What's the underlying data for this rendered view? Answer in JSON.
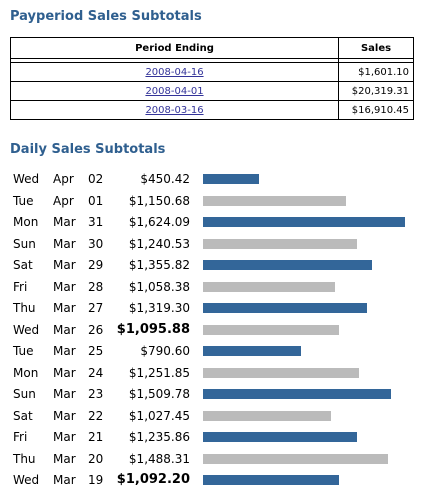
{
  "payperiod": {
    "title": "Payperiod Sales Subtotals",
    "columns": [
      "Period Ending",
      "Sales"
    ],
    "rows": [
      [
        "2008-04-16",
        "$1,601.10"
      ],
      [
        "2008-04-01",
        "$20,319.31"
      ],
      [
        "2008-03-16",
        "$16,910.45"
      ]
    ]
  },
  "daily": {
    "title": "Daily Sales Subtotals",
    "colors": [
      "#336699",
      "#bbbbbb"
    ],
    "rows": [
      {
        "day": "Wed",
        "month": "Apr",
        "date": "02",
        "amount": "$450.42",
        "value": 450.42,
        "bold": false
      },
      {
        "day": "Tue",
        "month": "Apr",
        "date": "01",
        "amount": "$1,150.68",
        "value": 1150.68,
        "bold": false
      },
      {
        "day": "Mon",
        "month": "Mar",
        "date": "31",
        "amount": "$1,624.09",
        "value": 1624.09,
        "bold": false
      },
      {
        "day": "Sun",
        "month": "Mar",
        "date": "30",
        "amount": "$1,240.53",
        "value": 1240.53,
        "bold": false
      },
      {
        "day": "Sat",
        "month": "Mar",
        "date": "29",
        "amount": "$1,355.82",
        "value": 1355.82,
        "bold": false
      },
      {
        "day": "Fri",
        "month": "Mar",
        "date": "28",
        "amount": "$1,058.38",
        "value": 1058.38,
        "bold": false
      },
      {
        "day": "Thu",
        "month": "Mar",
        "date": "27",
        "amount": "$1,319.30",
        "value": 1319.3,
        "bold": false
      },
      {
        "day": "Wed",
        "month": "Mar",
        "date": "26",
        "amount": "$1,095.88",
        "value": 1095.88,
        "bold": true
      },
      {
        "day": "Tue",
        "month": "Mar",
        "date": "25",
        "amount": "$790.60",
        "value": 790.6,
        "bold": false
      },
      {
        "day": "Mon",
        "month": "Mar",
        "date": "24",
        "amount": "$1,251.85",
        "value": 1251.85,
        "bold": false
      },
      {
        "day": "Sun",
        "month": "Mar",
        "date": "23",
        "amount": "$1,509.78",
        "value": 1509.78,
        "bold": false
      },
      {
        "day": "Sat",
        "month": "Mar",
        "date": "22",
        "amount": "$1,027.45",
        "value": 1027.45,
        "bold": false
      },
      {
        "day": "Fri",
        "month": "Mar",
        "date": "21",
        "amount": "$1,235.86",
        "value": 1235.86,
        "bold": false
      },
      {
        "day": "Thu",
        "month": "Mar",
        "date": "20",
        "amount": "$1,488.31",
        "value": 1488.31,
        "bold": false
      },
      {
        "day": "Wed",
        "month": "Mar",
        "date": "19",
        "amount": "$1,092.20",
        "value": 1092.2,
        "bold": true
      }
    ]
  }
}
